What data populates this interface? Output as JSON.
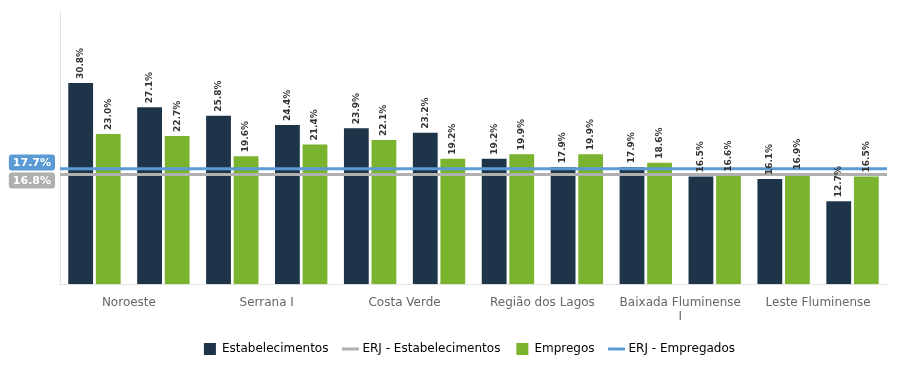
{
  "chart_data": {
    "type": "bar",
    "categories": [
      "Noroeste",
      null,
      "Serrana I",
      null,
      "Costa Verde",
      null,
      "Região dos Lagos",
      null,
      "Baixada Fluminense\nI",
      null,
      "Leste Fluminense",
      null
    ],
    "series": [
      {
        "name": "Estabelecimentos",
        "color": "#1e3448",
        "values": [
          30.8,
          27.1,
          25.8,
          24.4,
          23.9,
          23.2,
          19.2,
          17.9,
          17.9,
          16.5,
          16.1,
          12.7
        ],
        "value_labels": [
          "30.8%",
          "27.1%",
          "25.8%",
          "24.4%",
          "23.9%",
          "23.2%",
          "19.2%",
          "17.9%",
          "17.9%",
          "16.5%",
          "16.1%",
          "12.7%"
        ]
      },
      {
        "name": "Empregos",
        "color": "#7ab32e",
        "values": [
          23.0,
          22.7,
          19.6,
          21.4,
          22.1,
          19.2,
          19.9,
          19.9,
          18.6,
          16.6,
          16.9,
          16.5
        ],
        "value_labels": [
          "23.0%",
          "22.7%",
          "19.6%",
          "21.4%",
          "22.1%",
          "19.2%",
          "19.9%",
          "19.9%",
          "18.6%",
          "16.6%",
          "16.9%",
          "16.5%"
        ]
      }
    ],
    "hlines": [
      {
        "name": "ERJ - Estabelecimentos",
        "value": 16.8,
        "label": "16.8%",
        "color": "#b0b0b0"
      },
      {
        "name": "ERJ - Empregados",
        "value": 17.7,
        "label": "17.7%",
        "color": "#5b9bd5"
      }
    ],
    "ylim": [
      0,
      42
    ],
    "yticks": [],
    "grid": false,
    "legend": "bottom",
    "data_labels": true,
    "tick_labels": "x"
  }
}
